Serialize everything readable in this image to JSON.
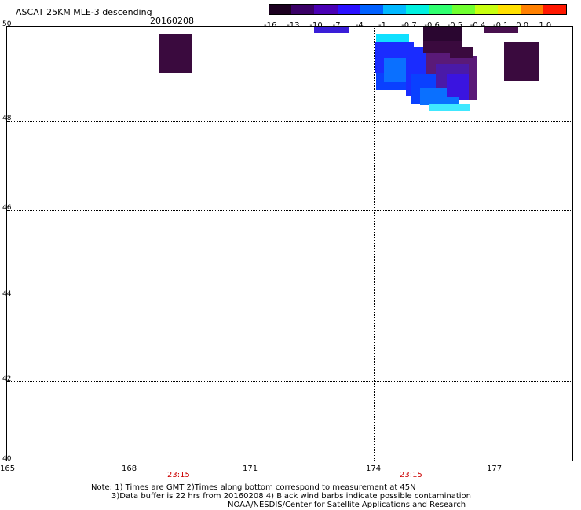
{
  "header": {
    "title": "ASCAT 25KM MLE-3 descending",
    "date": "20160208"
  },
  "colorbar": {
    "labels": [
      "-16",
      "-13",
      "-10",
      "-7",
      "-4",
      "-1",
      "-0.7",
      "-0.6",
      "-0.5",
      "-0.4",
      "-0.1",
      "0.0",
      "1.0"
    ],
    "colors": [
      "#1c0020",
      "#3a0066",
      "#4a00b4",
      "#2a10ff",
      "#0060ff",
      "#00b8ff",
      "#00f0e0",
      "#30ff70",
      "#70ff30",
      "#c8ff10",
      "#ffe000",
      "#ff8000",
      "#ff1800"
    ],
    "legend_swatches": [
      {
        "name": "purple-blue",
        "color": "#3a1ed8"
      },
      {
        "name": "dark-purple",
        "color": "#48104e"
      }
    ]
  },
  "map": {
    "y_axis_labels": [
      "50",
      "48",
      "46",
      "44",
      "42",
      "40"
    ],
    "x_axis_labels": [
      "165",
      "168",
      "171",
      "174",
      "177"
    ],
    "time_labels": [
      "23:15",
      "23:15"
    ],
    "colors": {
      "dark": "#3a0a3e",
      "dark2": "#2a0630",
      "purple": "#5a1a78",
      "violet": "#4a1aa8",
      "indigo": "#3a14e0",
      "blue": "#1a2cff",
      "blue2": "#0a40ff",
      "azure": "#0a70ff",
      "cyan": "#10e0ff",
      "cyan2": "#40e8ff"
    }
  },
  "notes": {
    "line1": "Note: 1) Times are GMT 2)Times along bottom correspond to measurement at 45N",
    "line2": "3)Data buffer is 22 hrs from 20160208 4) Black wind barbs indicate possible contamination",
    "line3": "NOAA/NESDIS/Center for Satellite Applications and Research"
  }
}
